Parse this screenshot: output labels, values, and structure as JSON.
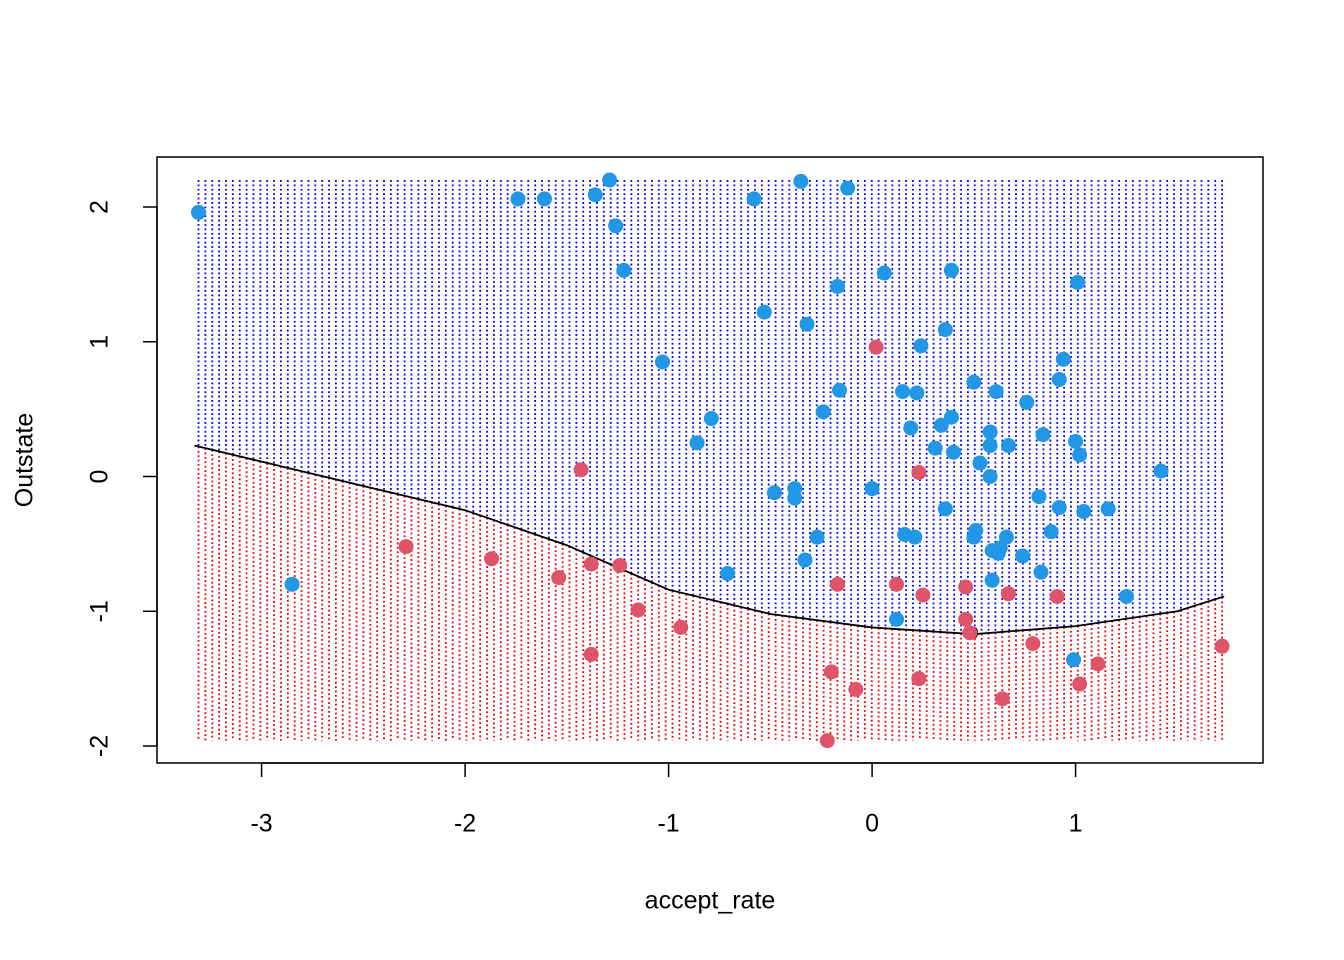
{
  "chart_data": {
    "type": "scatter",
    "x_label": "accept_rate",
    "y_label": "Outstate",
    "xlim": [
      -3.514,
      1.921
    ],
    "ylim": [
      -2.126,
      2.371
    ],
    "xticks": [
      -3,
      -2,
      -1,
      0,
      1
    ],
    "yticks": [
      -2,
      -1,
      0,
      1,
      2
    ],
    "boundary": {
      "x": [
        -3.33,
        -3,
        -2.5,
        -2,
        -1.5,
        -1,
        -0.5,
        0,
        0.5,
        1,
        1.5,
        1.73
      ],
      "y": [
        0.23,
        0.11,
        -0.07,
        -0.25,
        -0.51,
        -0.84,
        -1.02,
        -1.12,
        -1.17,
        -1.11,
        -1.0,
        -0.89
      ],
      "label": "0",
      "color": "#000000"
    },
    "series": [
      {
        "color": "#2297e6",
        "region_color": "#0000ee",
        "region": "above",
        "x": [
          -3.31,
          -2.85,
          -1.74,
          -1.61,
          -1.36,
          -1.29,
          -1.26,
          -1.22,
          -1.03,
          -0.86,
          -0.79,
          -0.71,
          -0.58,
          -0.53,
          -0.48,
          -0.38,
          -0.38,
          -0.35,
          -0.32,
          -0.33,
          -0.27,
          -0.24,
          -0.17,
          -0.16,
          -0.12,
          0.0,
          0.06,
          0.12,
          0.15,
          0.16,
          0.19,
          0.21,
          0.22,
          0.24,
          0.31,
          0.34,
          0.36,
          0.36,
          0.39,
          0.39,
          0.4,
          0.5,
          0.5,
          0.51,
          0.53,
          0.58,
          0.58,
          0.58,
          0.59,
          0.59,
          0.61,
          0.62,
          0.63,
          0.66,
          0.67,
          0.74,
          0.76,
          0.82,
          0.83,
          0.84,
          0.88,
          0.92,
          0.92,
          0.94,
          0.99,
          1.0,
          1.01,
          1.02,
          1.04,
          1.16,
          1.25,
          1.42
        ],
        "values": [
          1.96,
          -0.8,
          2.06,
          2.06,
          2.09,
          2.2,
          1.86,
          1.53,
          0.85,
          0.25,
          0.43,
          -0.72,
          2.06,
          1.22,
          -0.12,
          -0.09,
          -0.16,
          2.19,
          1.13,
          -0.62,
          -0.45,
          0.48,
          1.41,
          0.64,
          2.14,
          -0.09,
          1.51,
          -1.06,
          0.63,
          -0.43,
          0.36,
          -0.45,
          0.62,
          0.97,
          0.21,
          0.38,
          -0.24,
          1.09,
          1.53,
          0.44,
          0.18,
          0.7,
          -0.45,
          -0.4,
          0.1,
          0.33,
          0.23,
          0.0,
          -0.55,
          -0.77,
          0.63,
          -0.57,
          -0.53,
          -0.45,
          0.23,
          -0.59,
          0.55,
          -0.15,
          -0.71,
          0.31,
          -0.41,
          0.72,
          -0.23,
          0.87,
          -1.36,
          0.26,
          1.44,
          0.16,
          -0.26,
          -0.24,
          -0.89,
          0.04
        ]
      },
      {
        "color": "#df536b",
        "region_color": "#ee0000",
        "region": "below",
        "x": [
          -1.43,
          -2.29,
          -1.87,
          -1.54,
          -1.38,
          -1.24,
          -1.38,
          -1.15,
          -0.94,
          -0.2,
          -0.22,
          -0.17,
          -0.08,
          0.02,
          0.12,
          0.23,
          0.25,
          0.23,
          0.46,
          0.46,
          0.48,
          0.64,
          0.67,
          0.79,
          0.91,
          1.02,
          1.11,
          1.72
        ],
        "values": [
          0.05,
          -0.52,
          -0.61,
          -0.75,
          -0.65,
          -0.66,
          -1.32,
          -0.99,
          -1.12,
          -1.45,
          -1.96,
          -0.8,
          -1.58,
          0.96,
          -0.8,
          0.03,
          -0.88,
          -1.5,
          -0.82,
          -1.06,
          -1.16,
          -1.65,
          -0.87,
          -1.24,
          -0.89,
          -1.54,
          -1.39,
          -1.26
        ]
      }
    ]
  }
}
